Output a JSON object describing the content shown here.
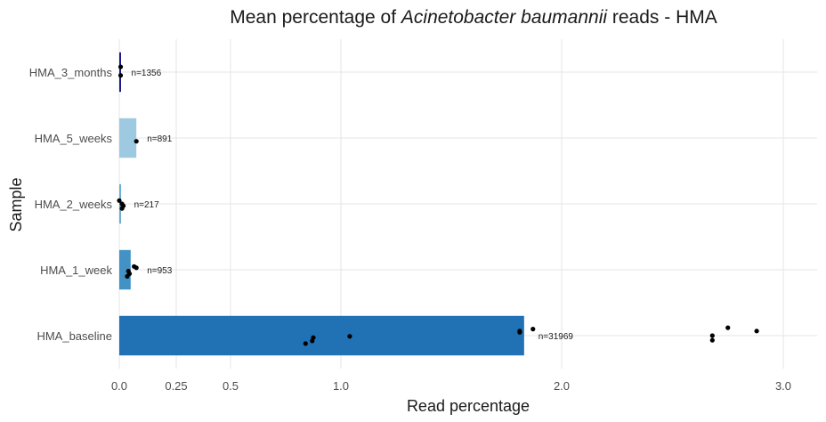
{
  "chart_data": {
    "type": "bar",
    "orientation": "horizontal",
    "title_prefix": "Mean percentage of ",
    "title_italic": "Acinetobacter baumannii",
    "title_suffix": " reads - HMA",
    "xlabel": "Read percentage",
    "ylabel": "Sample",
    "xlim": [
      0,
      3.15
    ],
    "xticks": [
      0.0,
      0.25,
      0.5,
      1.0,
      2.0,
      3.0
    ],
    "xtick_labels": [
      "0.0",
      "0.25",
      "0.5",
      "1.0",
      "2.0",
      "3.0"
    ],
    "grid": true,
    "legend": "none",
    "categories": [
      "HMA_3_months",
      "HMA_5_weeks",
      "HMA_2_weeks",
      "HMA_1_week",
      "HMA_baseline"
    ],
    "values": [
      0.006,
      0.075,
      0.006,
      0.05,
      1.83
    ],
    "colors": [
      "#1a1c8c",
      "#9ecae1",
      "#6baed6",
      "#4292c6",
      "#2171b5"
    ],
    "n_labels": [
      "n=1356",
      "n=891",
      "n=217",
      "n=953",
      "n=31969"
    ],
    "points": [
      [
        {
          "x": 0.006,
          "dy": -0.08
        },
        {
          "x": 0.006,
          "dy": 0.05
        }
      ],
      [
        {
          "x": 0.075,
          "dy": 0.05
        }
      ],
      [
        {
          "x": 0.0,
          "dy": -0.05
        },
        {
          "x": 0.012,
          "dy": 0.0
        },
        {
          "x": 0.018,
          "dy": 0.03
        },
        {
          "x": 0.012,
          "dy": 0.07
        }
      ],
      [
        {
          "x": 0.065,
          "dy": -0.05
        },
        {
          "x": 0.075,
          "dy": -0.03
        },
        {
          "x": 0.04,
          "dy": 0.02
        },
        {
          "x": 0.045,
          "dy": 0.06
        },
        {
          "x": 0.035,
          "dy": 0.1
        }
      ],
      [
        {
          "x": 0.84,
          "dy": 0.12
        },
        {
          "x": 0.87,
          "dy": 0.08
        },
        {
          "x": 0.875,
          "dy": 0.03
        },
        {
          "x": 1.04,
          "dy": 0.01
        },
        {
          "x": 1.81,
          "dy": -0.07
        },
        {
          "x": 1.81,
          "dy": -0.05
        },
        {
          "x": 1.87,
          "dy": -0.1
        },
        {
          "x": 2.68,
          "dy": 0.0
        },
        {
          "x": 2.68,
          "dy": 0.07
        },
        {
          "x": 2.75,
          "dy": -0.12
        },
        {
          "x": 2.88,
          "dy": -0.07
        }
      ]
    ]
  }
}
